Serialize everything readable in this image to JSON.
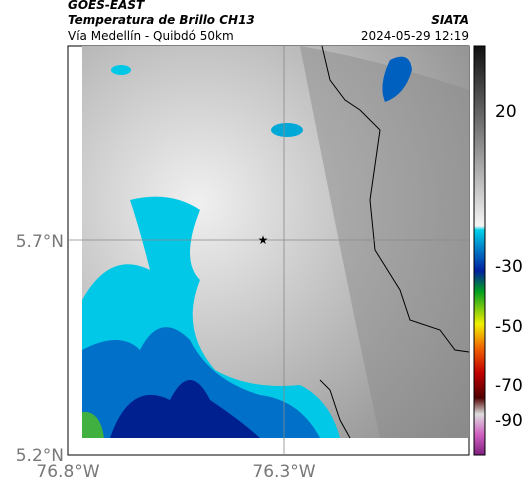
{
  "header": {
    "satellite": "GOES-EAST",
    "product": "Temperatura de Brillo CH13",
    "route": "Vía Medellín - Quibdó 50km",
    "source": "SIATA",
    "datetime": "2024-05-29 12:19"
  },
  "map": {
    "lat_labels": [
      "5.7°N",
      "5.2°N"
    ],
    "lon_labels": [
      "76.8°W",
      "76.3°W"
    ]
  },
  "colorbar": {
    "tick_labels": [
      "20",
      "-30",
      "-50",
      "-70",
      "-90"
    ]
  }
}
